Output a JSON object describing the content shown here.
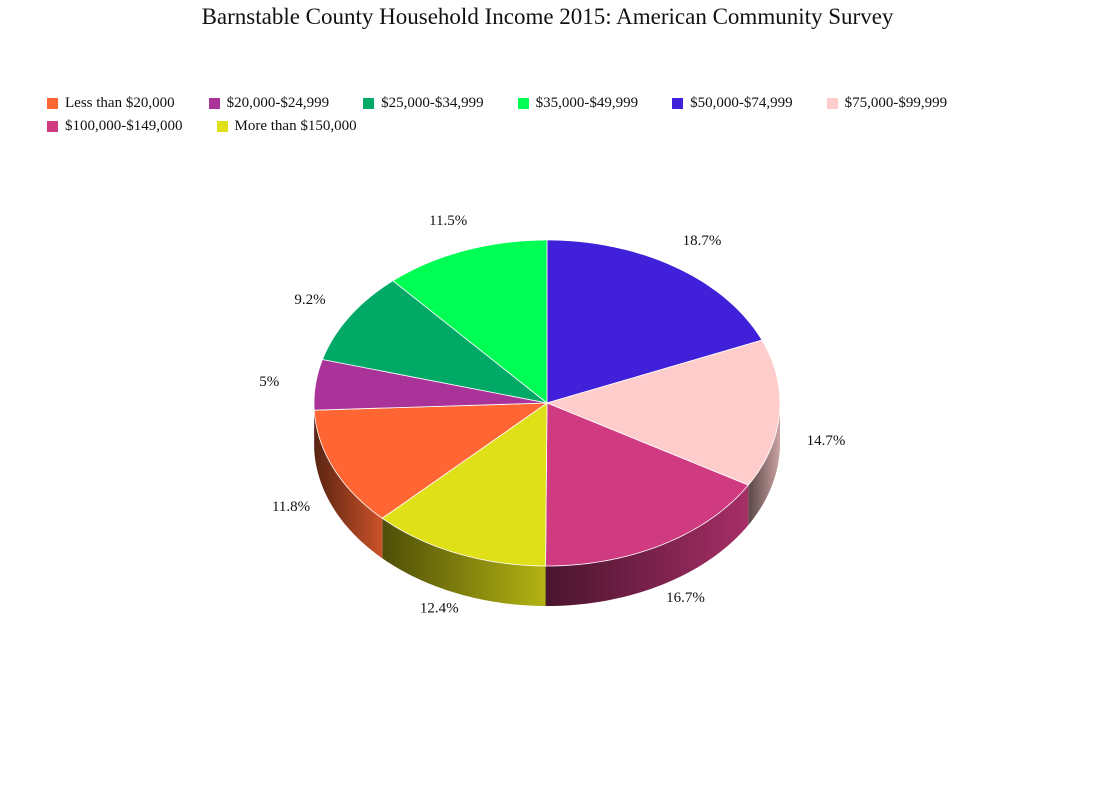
{
  "chart_data": {
    "type": "pie",
    "title": "Barnstable County Household Income 2015: American Community Survey",
    "legend_position": "top",
    "slices": [
      {
        "label": "Less than $20,000",
        "value": 11.8,
        "display": "11.8%",
        "color": "#ff6633"
      },
      {
        "label": "$20,000-$24,999",
        "value": 5.0,
        "display": "5%",
        "color": "#aa3399"
      },
      {
        "label": "$25,000-$34,999",
        "value": 9.2,
        "display": "9.2%",
        "color": "#00aa66"
      },
      {
        "label": "$35,000-$49,999",
        "value": 11.5,
        "display": "11.5%",
        "color": "#00ff55"
      },
      {
        "label": "$50,000-$74,999",
        "value": 18.7,
        "display": "18.7%",
        "color": "#4020d8"
      },
      {
        "label": "$75,000-$99,999",
        "value": 14.7,
        "display": "14.7%",
        "color": "#ffcccc"
      },
      {
        "label": "$100,000-$149,000",
        "value": 16.7,
        "display": "16.7%",
        "color": "#d03a80"
      },
      {
        "label": "More than $150,000",
        "value": 12.4,
        "display": "12.4%",
        "color": "#e0e018"
      }
    ]
  }
}
